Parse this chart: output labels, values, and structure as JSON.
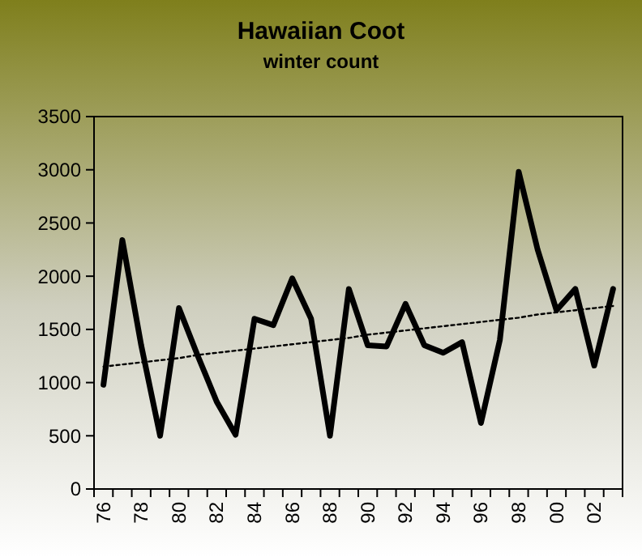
{
  "chart_data": {
    "type": "line",
    "title": "Hawaiian Coot",
    "subtitle": "winter count",
    "categories": [
      "76",
      null,
      "78",
      null,
      "80",
      null,
      "82",
      null,
      "84",
      null,
      "86",
      null,
      "88",
      null,
      "90",
      null,
      "92",
      null,
      "94",
      null,
      "96",
      null,
      "98",
      null,
      "00",
      null,
      "02",
      null
    ],
    "series": [
      {
        "color": "#000000",
        "line_style": "solid",
        "values": [
          980,
          2340,
          1350,
          500,
          1700,
          1250,
          820,
          510,
          1600,
          1540,
          1980,
          1600,
          500,
          1880,
          1350,
          1340,
          1740,
          1350,
          1280,
          1380,
          620,
          1400,
          2980,
          2250,
          1680,
          1880,
          1160,
          1880
        ]
      },
      {
        "color": "#000000",
        "line_style": "dotted",
        "values": [
          1150,
          1170,
          1190,
          1210,
          1230,
          1260,
          1280,
          1300,
          1320,
          1340,
          1360,
          1380,
          1400,
          1420,
          1450,
          1470,
          1490,
          1510,
          1530,
          1550,
          1570,
          1590,
          1610,
          1640,
          1660,
          1680,
          1700,
          1720
        ]
      }
    ],
    "ylim": [
      0,
      3500
    ],
    "yticks": [
      0,
      500,
      1000,
      1500,
      2000,
      2500,
      3000,
      3500
    ],
    "grid": false
  }
}
